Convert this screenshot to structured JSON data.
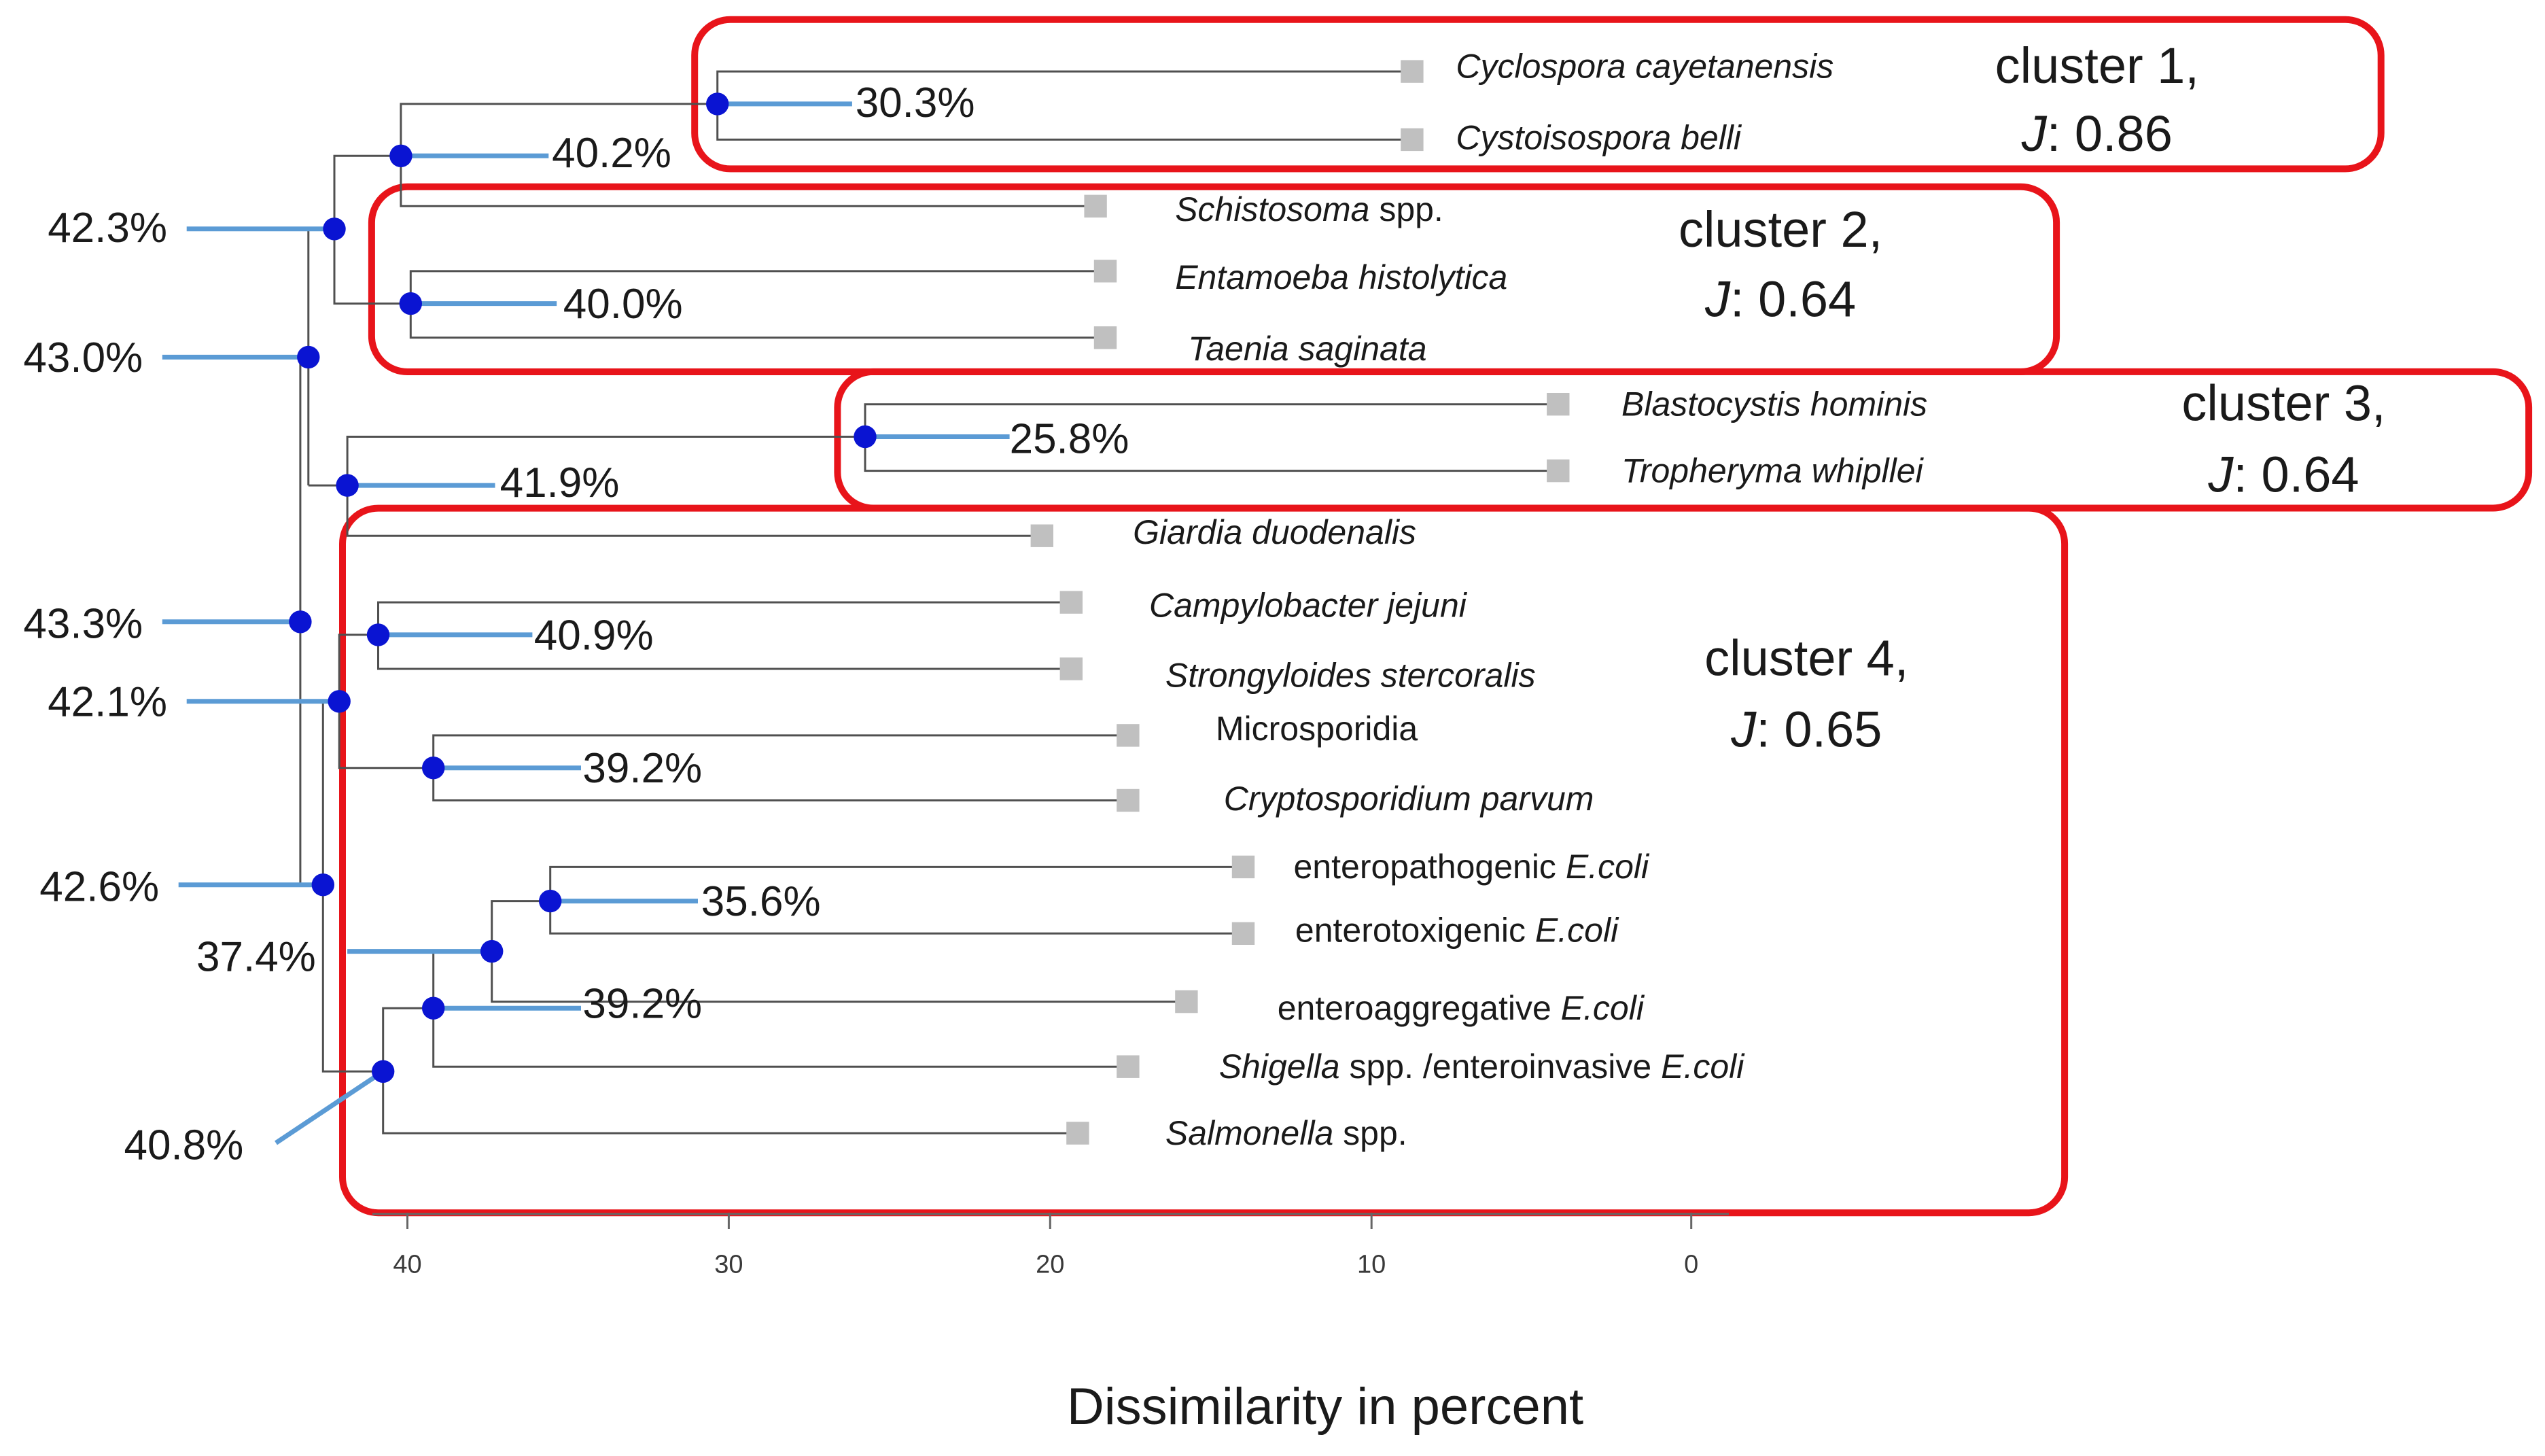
{
  "axis": {
    "title": "Dissimilarity in percent",
    "ticks": [
      "40",
      "30",
      "20",
      "10",
      "0"
    ]
  },
  "leaves": {
    "cyclospora": [
      "Cyclospora cayetanensis"
    ],
    "cystoisospora": [
      "Cystoisospora belli"
    ],
    "schistosoma": [
      "Schistosoma",
      " spp."
    ],
    "entamoeba": [
      "Entamoeba histolytica"
    ],
    "taenia": [
      "Taenia saginata"
    ],
    "blastocystis": [
      "Blastocystis hominis"
    ],
    "tropheryma": [
      "Tropheryma whipllei"
    ],
    "giardia": [
      "Giardia duodenalis"
    ],
    "campylobacter": [
      "Campylobacter jejuni"
    ],
    "strongyloides": [
      "Strongyloides stercoralis"
    ],
    "microsporidia": [
      "Microsporidia"
    ],
    "cryptosporidium": [
      "Cryptosporidium parvum"
    ],
    "epec": [
      "enteropathogenic ",
      "E.coli"
    ],
    "etec": [
      "enterotoxigenic  ",
      "E.coli"
    ],
    "eaec": [
      "enteroaggregative  ",
      "E.coli"
    ],
    "shigella": [
      "Shigella",
      " spp. /enteroinvasive ",
      "E.coli"
    ],
    "salmonella": [
      "Salmonella",
      " spp."
    ]
  },
  "nodes": {
    "n_cyclo": "30.3%",
    "n_c1": "40.2%",
    "n_top": "42.3%",
    "n_ent": "40.0%",
    "n_root_upper": "43.0%",
    "n_blasto": "25.8%",
    "n_giardia": "41.9%",
    "n_root": "43.3%",
    "n_campy": "40.9%",
    "n_c4": "42.1%",
    "n_micro": "39.2%",
    "n_c4b": "42.6%",
    "n_ecoli": "35.6%",
    "n_ecoli2": "37.4%",
    "n_eaec": "39.2%",
    "n_salm": "40.8%"
  },
  "clusters": [
    {
      "line1": "cluster 1,",
      "j_symbol": "J",
      "j_value": ": 0.86"
    },
    {
      "line1": "cluster 2,",
      "j_symbol": "J",
      "j_value": ": 0.64"
    },
    {
      "line1": "cluster 3,",
      "j_symbol": "J",
      "j_value": ": 0.64"
    },
    {
      "line1": "cluster 4,",
      "j_symbol": "J",
      "j_value": ": 0.65"
    }
  ]
}
